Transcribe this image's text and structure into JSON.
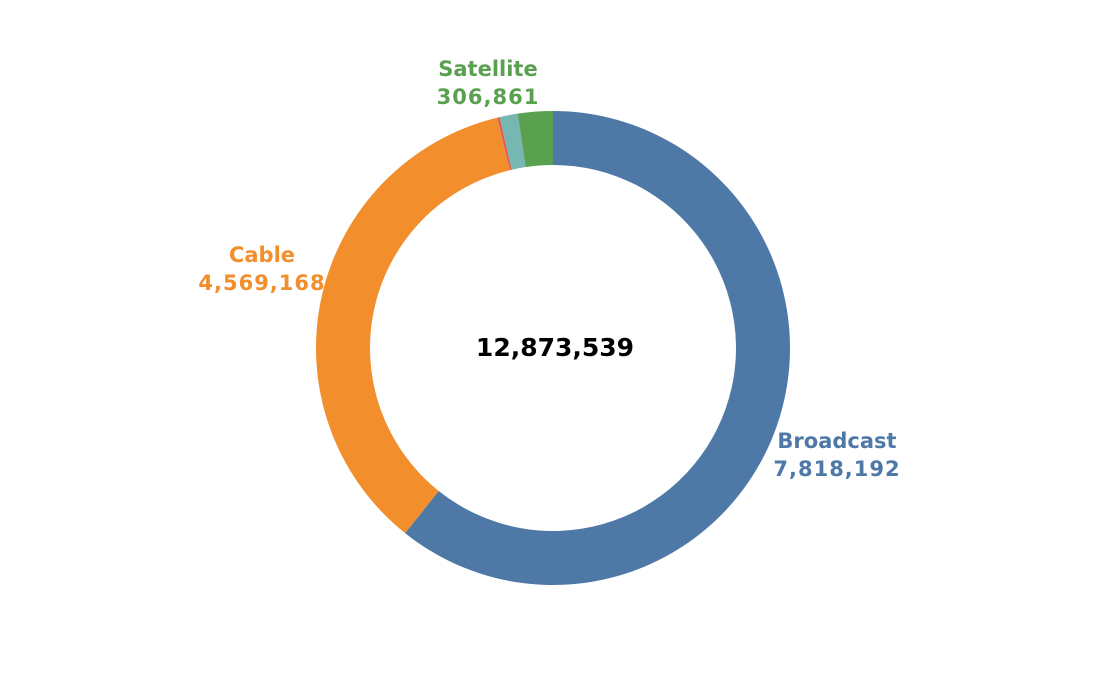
{
  "chart_data": {
    "type": "pie",
    "variant": "donut",
    "total_label": "12,873,539",
    "slices": [
      {
        "name": "Broadcast",
        "value": 7818192,
        "value_label": "7,818,192",
        "color": "#4e79a7",
        "labeled": true
      },
      {
        "name": "Cable",
        "value": 4569168,
        "value_label": "4,569,168",
        "color": "#f28e2b",
        "labeled": true
      },
      {
        "name": "",
        "value": 20000,
        "value_label": "",
        "color": "#e15759",
        "labeled": false
      },
      {
        "name": "",
        "value": 159318,
        "value_label": "",
        "color": "#76b7b2",
        "labeled": false
      },
      {
        "name": "Satellite",
        "value": 306861,
        "value_label": "306,861",
        "color": "#59a14f",
        "labeled": true
      }
    ]
  }
}
